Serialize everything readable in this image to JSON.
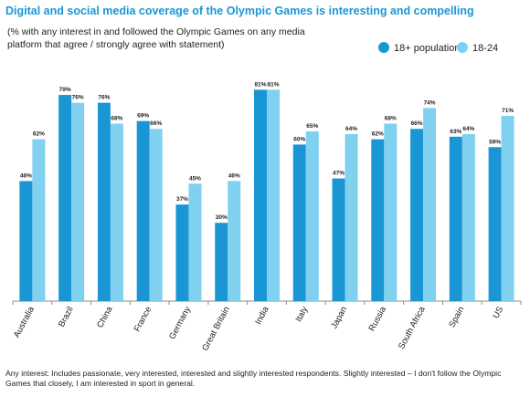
{
  "chart_data": {
    "type": "bar",
    "title": "Digital and social media coverage of the Olympic Games is interesting and compelling",
    "subtitle": "(% with any interest in and followed the Olympic Games on any media platform that agree / strongly agree with statement)",
    "footnote": "Any interest: Includes passionate, very interested, interested and slightly interested respondents. Slightly interested – I don't follow the Olympic Games that closely, I am interested in sport in general.",
    "categories": [
      "Australia",
      "Brazil",
      "China",
      "France",
      "Germany",
      "Great Britain",
      "India",
      "Italy",
      "Japan",
      "Russia",
      "South Africa",
      "Spain",
      "US"
    ],
    "series": [
      {
        "name": "18+ population",
        "color": "#1a96d4",
        "values": [
          46,
          79,
          76,
          69,
          37,
          30,
          81,
          60,
          47,
          62,
          66,
          63,
          59
        ],
        "value_labels": [
          "46%",
          "79%",
          "76%",
          "69%",
          "37%",
          "30%",
          "81%",
          "60%",
          "47%",
          "62%",
          "66%",
          "63%",
          "59%"
        ]
      },
      {
        "name": "18-24",
        "color": "#80d0f0",
        "values": [
          62,
          76,
          68,
          66,
          45,
          46,
          81,
          65,
          64,
          68,
          74,
          64,
          71
        ],
        "value_labels": [
          "62%",
          "76%",
          "68%",
          "66%",
          "45%",
          "46%",
          "81%",
          "65%",
          "64%",
          "68%",
          "74%",
          "64%",
          "71%"
        ]
      }
    ],
    "ylim": [
      0,
      100
    ],
    "legend": "top-right"
  }
}
